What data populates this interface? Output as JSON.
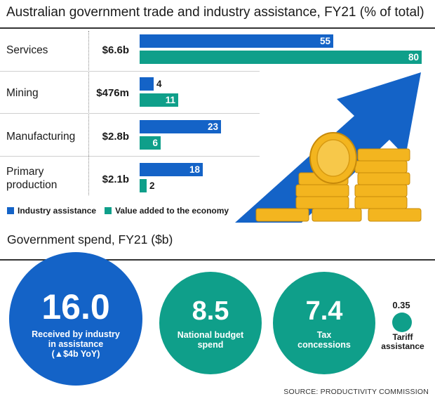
{
  "chart_data": [
    {
      "type": "bar",
      "title": "Australian government trade and industry assistance, FY21 (% of total)",
      "orientation": "horizontal",
      "categories": [
        "Services",
        "Mining",
        "Manufacturing",
        "Primary production"
      ],
      "amounts": [
        "$6.6b",
        "$476m",
        "$2.8b",
        "$2.1b"
      ],
      "series": [
        {
          "name": "Industry assistance",
          "values": [
            55,
            4,
            23,
            18
          ],
          "color": "#1463c7"
        },
        {
          "name": "Value added to the economy",
          "values": [
            80,
            11,
            6,
            2
          ],
          "color": "#0f9f8a"
        }
      ],
      "xlim": [
        0,
        80
      ],
      "grid": false,
      "legend": "bottom-left"
    },
    {
      "type": "bubble",
      "title": "Government spend, FY21 ($b)",
      "items": [
        {
          "value": "16.0",
          "label_lines": [
            "Received by industry",
            "in assistance",
            "(▲$4b YoY)"
          ],
          "color": "#1463c7"
        },
        {
          "value": "8.5",
          "label_lines": [
            "National budget",
            "spend"
          ],
          "color": "#0f9f8a"
        },
        {
          "value": "7.4",
          "label_lines": [
            "Tax",
            "concessions"
          ],
          "color": "#0f9f8a"
        },
        {
          "value": "0.35",
          "label_lines": [
            "Tariff",
            "assistance"
          ],
          "color": "#0f9f8a"
        }
      ]
    }
  ],
  "source": "SOURCE: PRODUCTIVITY COMMISSION"
}
